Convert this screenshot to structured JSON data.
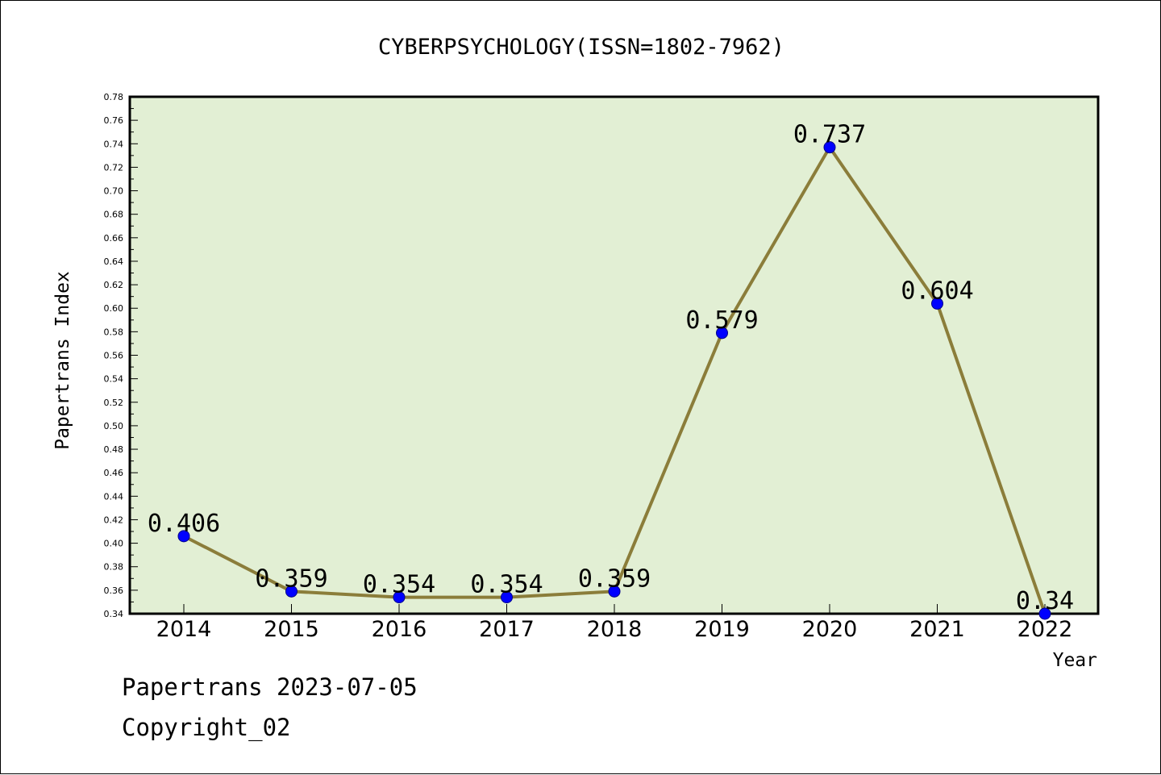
{
  "chart_data": {
    "type": "line",
    "title": "CYBERPSYCHOLOGY(ISSN=1802-7962)",
    "xlabel": "Year",
    "ylabel": "Papertrans Index",
    "categories": [
      "2014",
      "2015",
      "2016",
      "2017",
      "2018",
      "2019",
      "2020",
      "2021",
      "2022"
    ],
    "values": [
      0.406,
      0.359,
      0.354,
      0.354,
      0.359,
      0.579,
      0.737,
      0.604,
      0.34
    ],
    "data_labels": [
      "0.406",
      "0.359",
      "0.354",
      "0.354",
      "0.359",
      "0.579",
      "0.737",
      "0.604",
      "0.34"
    ],
    "ylim": [
      0.34,
      0.78
    ],
    "yticks": [
      "0.34",
      "0.36",
      "0.38",
      "0.40",
      "0.42",
      "0.44",
      "0.46",
      "0.48",
      "0.50",
      "0.52",
      "0.54",
      "0.56",
      "0.58",
      "0.60",
      "0.62",
      "0.64",
      "0.66",
      "0.68",
      "0.70",
      "0.72",
      "0.74",
      "0.76",
      "0.78"
    ],
    "grid": false,
    "legend": "none",
    "colors": {
      "plot_background": "#e2efd4",
      "line": "#8b7d3a",
      "marker": "#0000ff"
    }
  },
  "footer": {
    "line1": "Papertrans 2023-07-05",
    "line2": "Copyright_02"
  }
}
